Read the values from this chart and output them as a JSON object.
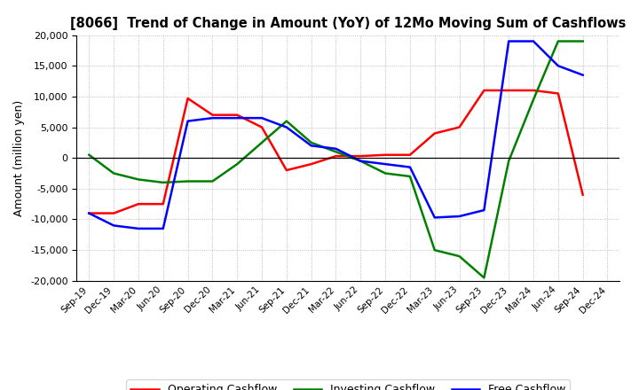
{
  "title": "[8066]  Trend of Change in Amount (YoY) of 12Mo Moving Sum of Cashflows",
  "ylabel": "Amount (million yen)",
  "ylim": [
    -20000,
    20000
  ],
  "yticks": [
    -20000,
    -15000,
    -10000,
    -5000,
    0,
    5000,
    10000,
    15000,
    20000
  ],
  "x_labels": [
    "Sep-19",
    "Dec-19",
    "Mar-20",
    "Jun-20",
    "Sep-20",
    "Dec-20",
    "Mar-21",
    "Jun-21",
    "Sep-21",
    "Dec-21",
    "Mar-22",
    "Jun-22",
    "Sep-22",
    "Dec-22",
    "Mar-23",
    "Jun-23",
    "Sep-23",
    "Dec-23",
    "Mar-24",
    "Jun-24",
    "Sep-24",
    "Dec-24"
  ],
  "operating_cashflow": [
    -9000,
    -9000,
    -7500,
    -7500,
    9700,
    7000,
    7000,
    5000,
    -2000,
    -1000,
    300,
    300,
    500,
    500,
    4000,
    5000,
    11000,
    11000,
    11000,
    10500,
    -6000,
    null
  ],
  "investing_cashflow": [
    500,
    -2500,
    -3500,
    -4000,
    -3800,
    -3800,
    -1000,
    2500,
    6000,
    2500,
    1000,
    -500,
    -2500,
    -3000,
    -15000,
    -16000,
    -19500,
    -500,
    9500,
    19000,
    19000,
    null
  ],
  "free_cashflow": [
    -9000,
    -11000,
    -11500,
    -11500,
    6000,
    6500,
    6500,
    6500,
    5000,
    2000,
    1500,
    -500,
    -1000,
    -1500,
    -9700,
    -9500,
    -8500,
    19000,
    19000,
    15000,
    13500,
    null
  ],
  "operating_color": "#FF0000",
  "investing_color": "#008000",
  "free_color": "#0000FF",
  "legend_labels": [
    "Operating Cashflow",
    "Investing Cashflow",
    "Free Cashflow"
  ],
  "background_color": "#FFFFFF",
  "grid_color": "#888888"
}
